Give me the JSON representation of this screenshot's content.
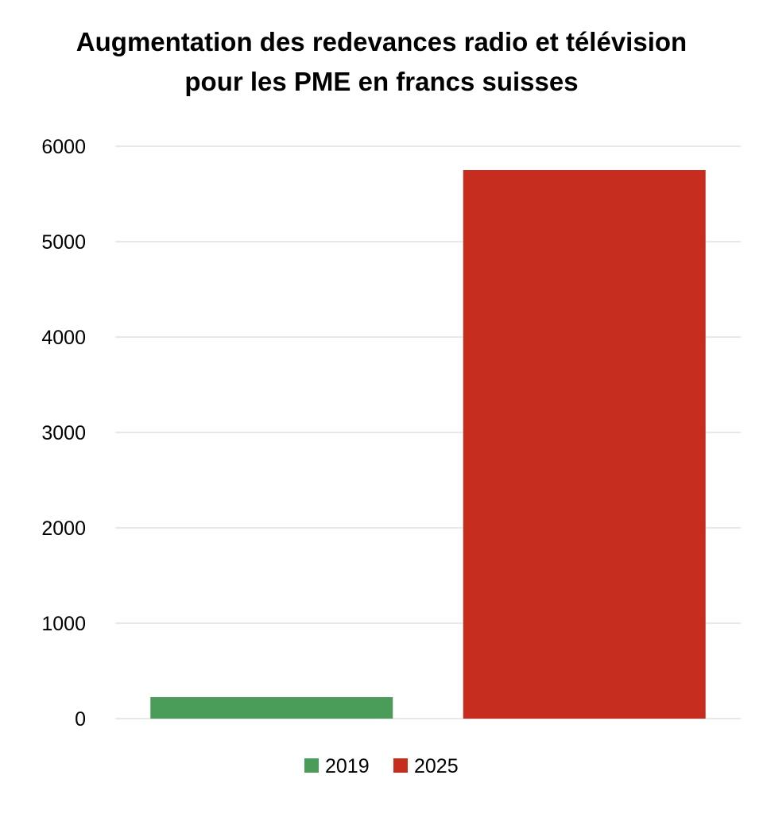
{
  "chart_data": {
    "type": "bar",
    "title_lines": [
      "Augmentation des redevances radio et télévision",
      "pour les PME en francs suisses"
    ],
    "categories": [
      "2019",
      "2025"
    ],
    "values": [
      225,
      5750
    ],
    "colors": [
      "#4A9D58",
      "#C62D1F"
    ],
    "legend": [
      "2019",
      "2025"
    ],
    "legend_position": "bottom",
    "ylim": [
      0,
      6000
    ],
    "yticks": [
      0,
      1000,
      2000,
      3000,
      4000,
      5000,
      6000
    ],
    "grid": true,
    "gridline_color": "#d9d9d9",
    "xlabel": "",
    "ylabel": ""
  }
}
